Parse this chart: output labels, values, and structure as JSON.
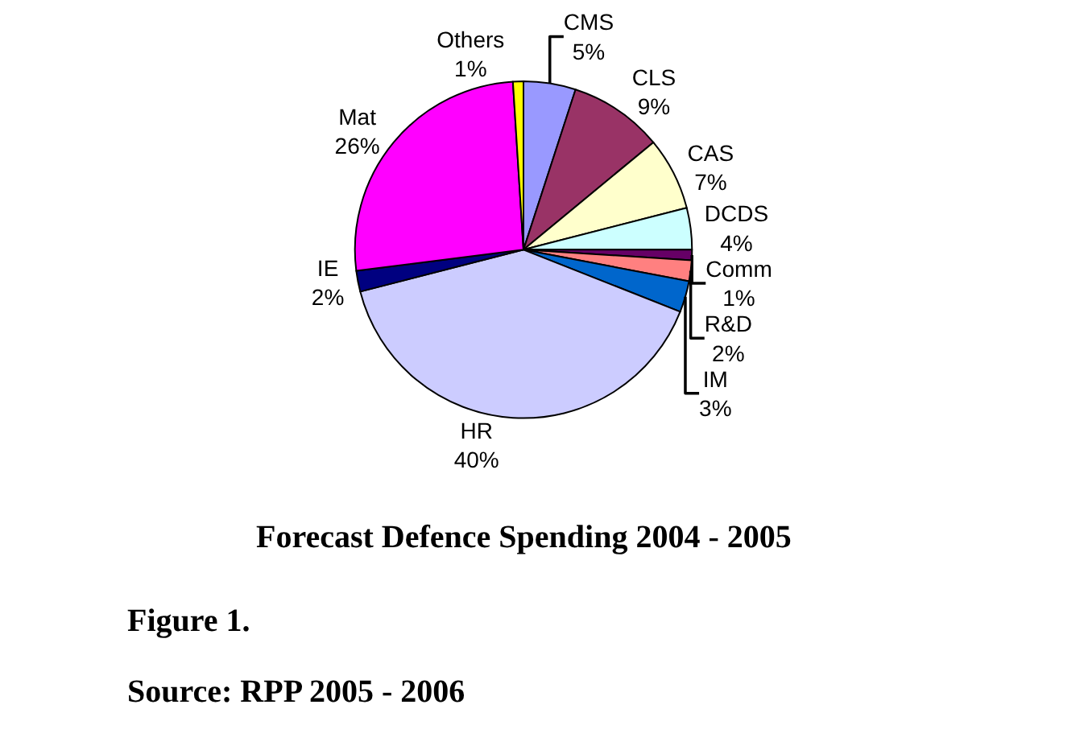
{
  "chart_data": {
    "type": "pie",
    "title": "Forecast Defence Spending 2004 - 2005",
    "categories": [
      "CMS",
      "CLS",
      "CAS",
      "DCDS",
      "Comm",
      "R&D",
      "IM",
      "HR",
      "IE",
      "Mat",
      "Others"
    ],
    "values": [
      5,
      9,
      7,
      4,
      1,
      2,
      3,
      40,
      2,
      26,
      1
    ],
    "value_labels": [
      "5%",
      "9%",
      "7%",
      "4%",
      "1%",
      "2%",
      "3%",
      "40%",
      "2%",
      "26%",
      "1%"
    ],
    "colors": [
      "#9999ff",
      "#993366",
      "#ffffcc",
      "#ccffff",
      "#660066",
      "#ff8080",
      "#0066cc",
      "#ccccff",
      "#000080",
      "#ff00ff",
      "#ffff00"
    ],
    "annotations": [
      "Figure 1.",
      "Source: RPP 2005 - 2006"
    ]
  }
}
